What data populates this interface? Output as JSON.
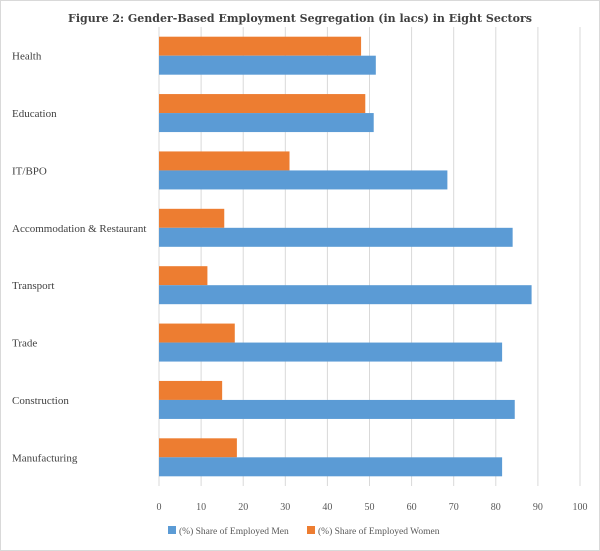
{
  "chart_data": {
    "type": "bar",
    "orientation": "horizontal",
    "title": "Figure 2: Gender-Based Employment Segregation (in lacs) in Eight Sectors",
    "categories": [
      "Health",
      "Education",
      "IT/BPO",
      "Accommodation & Restaurant",
      "Transport",
      "Trade",
      "Construction",
      "Manufacturing"
    ],
    "series": [
      {
        "name": "(%) Share of Employed Men",
        "color": "#5b9bd5",
        "values": [
          51.5,
          51,
          68.5,
          84,
          88.5,
          81.5,
          84.5,
          81.5
        ]
      },
      {
        "name": "(%) Share of Employed Women",
        "color": "#ed7d31",
        "values": [
          48,
          49,
          31,
          15.5,
          11.5,
          18,
          15,
          18.5
        ]
      }
    ],
    "xlim": [
      0,
      100
    ],
    "xticks": [
      0,
      10,
      20,
      30,
      40,
      50,
      60,
      70,
      80,
      90,
      100
    ],
    "grid": true,
    "legend_position": "bottom"
  }
}
